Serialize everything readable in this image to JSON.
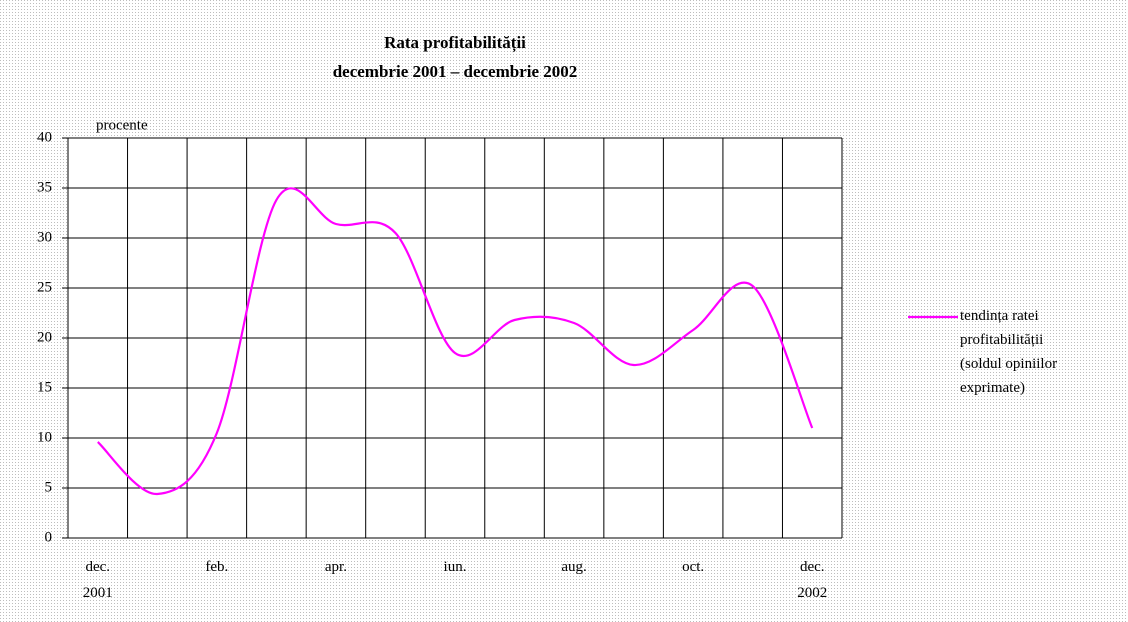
{
  "chart_data": {
    "type": "line",
    "title": "Rata profitabilității",
    "subtitle": "decembrie 2001 – decembrie 2002",
    "y_label": "procente",
    "categories": [
      "dec. 2001",
      null,
      "feb.",
      null,
      "apr.",
      null,
      "iun.",
      null,
      "aug.",
      null,
      "oct.",
      null,
      "dec. 2002"
    ],
    "series": [
      {
        "name": "tendința ratei profitabilității (soldul opiniilor exprimate)",
        "color": "#ff00ff",
        "values": [
          9.6,
          4.4,
          10.5,
          33.8,
          31.4,
          30.5,
          18.5,
          21.8,
          21.5,
          17.3,
          20.8,
          25.2,
          11
        ]
      }
    ],
    "ylim": [
      0,
      40
    ],
    "yticks": [
      0,
      5,
      10,
      15,
      20,
      25,
      30,
      35,
      40
    ],
    "grid": true,
    "legend": "right"
  }
}
